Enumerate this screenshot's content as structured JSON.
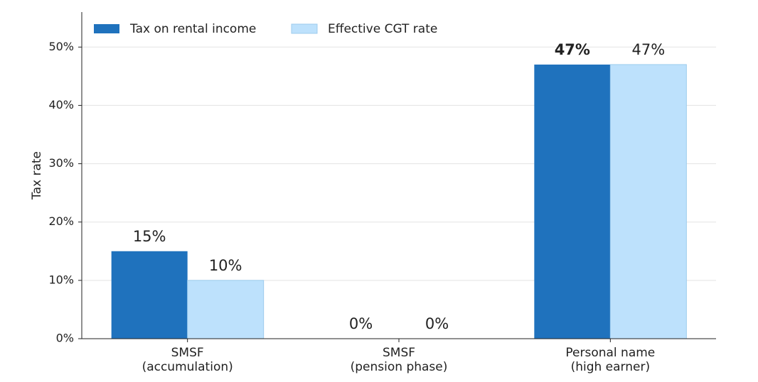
{
  "chart_data": {
    "type": "bar",
    "ylabel": "Tax rate",
    "categories": [
      [
        "SMSF",
        "(accumulation)"
      ],
      [
        "SMSF",
        "(pension phase)"
      ],
      [
        "Personal name",
        "(high earner)"
      ]
    ],
    "series": [
      {
        "name": "Tax on rental income",
        "color": "#1f72bd",
        "values": [
          15,
          0,
          47
        ],
        "value_labels": [
          "15%",
          "0%",
          "47%"
        ]
      },
      {
        "name": "Effective CGT rate",
        "color": "#bde1fc",
        "values": [
          10,
          0,
          47
        ],
        "value_labels": [
          "10%",
          "0%",
          "47%"
        ]
      }
    ],
    "ylim": [
      0,
      56
    ],
    "yticks": [
      {
        "value": 0,
        "label": "0%"
      },
      {
        "value": 10,
        "label": "10%"
      },
      {
        "value": 20,
        "label": "20%"
      },
      {
        "value": 30,
        "label": "30%"
      },
      {
        "value": 40,
        "label": "40%"
      },
      {
        "value": 50,
        "label": "50%"
      }
    ],
    "grid": true,
    "legend": "upper left"
  }
}
